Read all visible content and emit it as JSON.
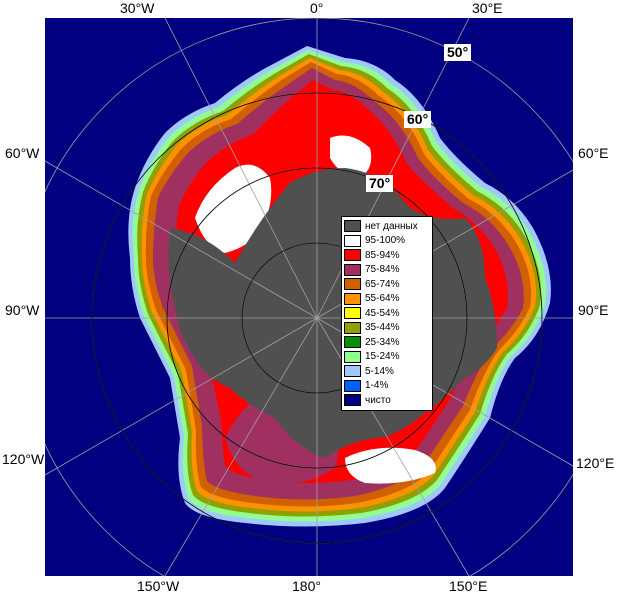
{
  "map": {
    "longitude_labels": {
      "top": [
        "30°W",
        "0°",
        "30°E"
      ],
      "left": [
        "60°W",
        "90°W",
        "120°W"
      ],
      "right": [
        "60°E",
        "90°E",
        "120°E"
      ],
      "bottom": [
        "150°W",
        "180°",
        "150°E"
      ]
    },
    "latitude_labels": [
      "50°",
      "60°",
      "70°"
    ],
    "colors": {
      "open_water": "#000080",
      "no_data": "#505050",
      "frame": "#808080",
      "graticule": "#a0a0a0"
    }
  },
  "legend": {
    "items": [
      {
        "label": "нет данных",
        "color": "#505050"
      },
      {
        "label": "95-100%",
        "color": "#ffffff"
      },
      {
        "label": "85-94%",
        "color": "#ff0000"
      },
      {
        "label": "75-84%",
        "color": "#a03060"
      },
      {
        "label": "65-74%",
        "color": "#d06000"
      },
      {
        "label": "55-64%",
        "color": "#ff9000"
      },
      {
        "label": "45-54%",
        "color": "#ffff00"
      },
      {
        "label": "35-44%",
        "color": "#90a000"
      },
      {
        "label": "25-34%",
        "color": "#009000"
      },
      {
        "label": "15-24%",
        "color": "#90ff90"
      },
      {
        "label": "5-14%",
        "color": "#a0c8ff"
      },
      {
        "label": "1-4%",
        "color": "#0060ff"
      },
      {
        "label": "чисто",
        "color": "#000080"
      }
    ]
  }
}
